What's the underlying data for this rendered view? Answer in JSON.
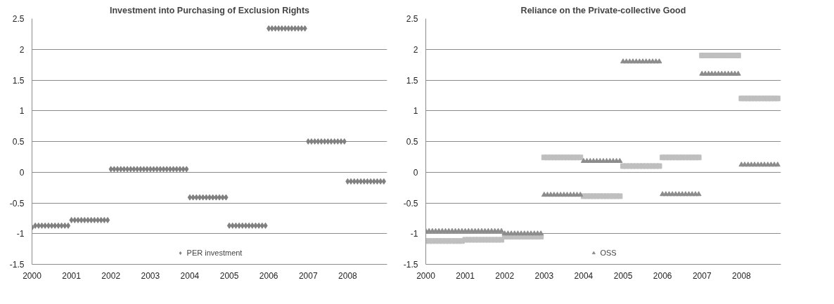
{
  "chart_data": [
    {
      "type": "scatter",
      "title": "Investment into Purchasing of Exclusion Rights",
      "x": [
        2000,
        2000.083,
        2000.167,
        2000.25,
        2000.333,
        2000.417,
        2000.5,
        2000.583,
        2000.667,
        2000.75,
        2000.833,
        2000.917,
        2001,
        2001.083,
        2001.167,
        2001.25,
        2001.333,
        2001.417,
        2001.5,
        2001.583,
        2001.667,
        2001.75,
        2001.833,
        2001.917,
        2002,
        2002.083,
        2002.167,
        2002.25,
        2002.333,
        2002.417,
        2002.5,
        2002.583,
        2002.667,
        2002.75,
        2002.833,
        2002.917,
        2003,
        2003.083,
        2003.167,
        2003.25,
        2003.333,
        2003.417,
        2003.5,
        2003.583,
        2003.667,
        2003.75,
        2003.833,
        2003.917,
        2004,
        2004.083,
        2004.167,
        2004.25,
        2004.333,
        2004.417,
        2004.5,
        2004.583,
        2004.667,
        2004.75,
        2004.833,
        2004.917,
        2005,
        2005.083,
        2005.167,
        2005.25,
        2005.333,
        2005.417,
        2005.5,
        2005.583,
        2005.667,
        2005.75,
        2005.833,
        2005.917,
        2006,
        2006.083,
        2006.167,
        2006.25,
        2006.333,
        2006.417,
        2006.5,
        2006.583,
        2006.667,
        2006.75,
        2006.833,
        2006.917,
        2007,
        2007.083,
        2007.167,
        2007.25,
        2007.333,
        2007.417,
        2007.5,
        2007.583,
        2007.667,
        2007.75,
        2007.833,
        2007.917,
        2008,
        2008.083,
        2008.167,
        2008.25,
        2008.333,
        2008.417,
        2008.5,
        2008.583,
        2008.667,
        2008.75,
        2008.833,
        2008.917
      ],
      "series": [
        {
          "name": "PER investment",
          "color": "#808080",
          "marker": "diamond",
          "values": [
            -0.9,
            -0.87,
            -0.87,
            -0.87,
            -0.87,
            -0.87,
            -0.87,
            -0.87,
            -0.87,
            -0.87,
            -0.87,
            -0.87,
            -0.78,
            -0.78,
            -0.78,
            -0.78,
            -0.78,
            -0.78,
            -0.78,
            -0.78,
            -0.78,
            -0.78,
            -0.78,
            -0.78,
            0.05,
            0.05,
            0.05,
            0.05,
            0.05,
            0.05,
            0.05,
            0.05,
            0.05,
            0.05,
            0.05,
            0.05,
            0.05,
            0.05,
            0.05,
            0.05,
            0.05,
            0.05,
            0.05,
            0.05,
            0.05,
            0.05,
            0.05,
            0.05,
            -0.41,
            -0.41,
            -0.41,
            -0.41,
            -0.41,
            -0.41,
            -0.41,
            -0.41,
            -0.41,
            -0.41,
            -0.41,
            -0.41,
            -0.87,
            -0.87,
            -0.87,
            -0.87,
            -0.87,
            -0.87,
            -0.87,
            -0.87,
            -0.87,
            -0.87,
            -0.87,
            -0.87,
            2.34,
            2.34,
            2.34,
            2.34,
            2.34,
            2.34,
            2.34,
            2.34,
            2.34,
            2.34,
            2.34,
            2.34,
            0.5,
            0.5,
            0.5,
            0.5,
            0.5,
            0.5,
            0.5,
            0.5,
            0.5,
            0.5,
            0.5,
            0.5,
            -0.15,
            -0.15,
            -0.15,
            -0.15,
            -0.15,
            -0.15,
            -0.15,
            -0.15,
            -0.15,
            -0.15,
            -0.15,
            -0.15
          ]
        }
      ],
      "xlim": [
        2000,
        2009
      ],
      "xticks": [
        2000,
        2001,
        2002,
        2003,
        2004,
        2005,
        2006,
        2007,
        2008
      ],
      "ylim": [
        -1.5,
        2.5
      ],
      "yticks": [
        -1.5,
        -1,
        -0.5,
        0,
        0.5,
        1,
        1.5,
        2,
        2.5
      ],
      "grid": "y",
      "legend": "bottom"
    },
    {
      "type": "scatter",
      "title": "Reliance on the Private-collective Good",
      "x": [
        2000,
        2000.083,
        2000.167,
        2000.25,
        2000.333,
        2000.417,
        2000.5,
        2000.583,
        2000.667,
        2000.75,
        2000.833,
        2000.917,
        2001,
        2001.083,
        2001.167,
        2001.25,
        2001.333,
        2001.417,
        2001.5,
        2001.583,
        2001.667,
        2001.75,
        2001.833,
        2001.917,
        2002,
        2002.083,
        2002.167,
        2002.25,
        2002.333,
        2002.417,
        2002.5,
        2002.583,
        2002.667,
        2002.75,
        2002.833,
        2002.917,
        2003,
        2003.083,
        2003.167,
        2003.25,
        2003.333,
        2003.417,
        2003.5,
        2003.583,
        2003.667,
        2003.75,
        2003.833,
        2003.917,
        2004,
        2004.083,
        2004.167,
        2004.25,
        2004.333,
        2004.417,
        2004.5,
        2004.583,
        2004.667,
        2004.75,
        2004.833,
        2004.917,
        2005,
        2005.083,
        2005.167,
        2005.25,
        2005.333,
        2005.417,
        2005.5,
        2005.583,
        2005.667,
        2005.75,
        2005.833,
        2005.917,
        2006,
        2006.083,
        2006.167,
        2006.25,
        2006.333,
        2006.417,
        2006.5,
        2006.583,
        2006.667,
        2006.75,
        2006.833,
        2006.917,
        2007,
        2007.083,
        2007.167,
        2007.25,
        2007.333,
        2007.417,
        2007.5,
        2007.583,
        2007.667,
        2007.75,
        2007.833,
        2007.917,
        2008,
        2008.083,
        2008.167,
        2008.25,
        2008.333,
        2008.417,
        2008.5,
        2008.583,
        2008.667,
        2008.75,
        2008.833,
        2008.917
      ],
      "series": [
        {
          "color": "#bfbfbf",
          "marker": "square",
          "values": [
            -1.12,
            -1.12,
            -1.12,
            -1.12,
            -1.12,
            -1.12,
            -1.12,
            -1.12,
            -1.12,
            -1.12,
            -1.12,
            -1.12,
            -1.1,
            -1.1,
            -1.1,
            -1.1,
            -1.1,
            -1.1,
            -1.1,
            -1.1,
            -1.1,
            -1.1,
            -1.1,
            -1.1,
            -1.05,
            -1.05,
            -1.05,
            -1.05,
            -1.05,
            -1.05,
            -1.05,
            -1.05,
            -1.05,
            -1.05,
            -1.05,
            -1.05,
            0.24,
            0.24,
            0.24,
            0.24,
            0.24,
            0.24,
            0.24,
            0.24,
            0.24,
            0.24,
            0.24,
            0.24,
            -0.39,
            -0.39,
            -0.39,
            -0.39,
            -0.39,
            -0.39,
            -0.39,
            -0.39,
            -0.39,
            -0.39,
            -0.39,
            -0.39,
            0.1,
            0.1,
            0.1,
            0.1,
            0.1,
            0.1,
            0.1,
            0.1,
            0.1,
            0.1,
            0.1,
            0.1,
            0.24,
            0.24,
            0.24,
            0.24,
            0.24,
            0.24,
            0.24,
            0.24,
            0.24,
            0.24,
            0.24,
            0.24,
            1.9,
            1.9,
            1.9,
            1.9,
            1.9,
            1.9,
            1.9,
            1.9,
            1.9,
            1.9,
            1.9,
            1.9,
            1.2,
            1.2,
            1.2,
            1.2,
            1.2,
            1.2,
            1.2,
            1.2,
            1.2,
            1.2,
            1.2,
            1.2
          ]
        },
        {
          "name": "OSS",
          "color": "#8c8c8c",
          "marker": "triangle",
          "values": [
            -0.96,
            -0.96,
            -0.96,
            -0.96,
            -0.96,
            -0.96,
            -0.96,
            -0.96,
            -0.96,
            -0.96,
            -0.96,
            -0.96,
            -0.96,
            -0.96,
            -0.96,
            -0.96,
            -0.96,
            -0.96,
            -0.96,
            -0.96,
            -0.96,
            -0.96,
            -0.96,
            -0.96,
            -1.0,
            -1.0,
            -1.0,
            -1.0,
            -1.0,
            -1.0,
            -1.0,
            -1.0,
            -1.0,
            -1.0,
            -1.0,
            -1.0,
            -0.37,
            -0.37,
            -0.37,
            -0.37,
            -0.37,
            -0.37,
            -0.37,
            -0.37,
            -0.37,
            -0.37,
            -0.37,
            -0.37,
            0.18,
            0.18,
            0.18,
            0.18,
            0.18,
            0.18,
            0.18,
            0.18,
            0.18,
            0.18,
            0.18,
            0.18,
            1.8,
            1.8,
            1.8,
            1.8,
            1.8,
            1.8,
            1.8,
            1.8,
            1.8,
            1.8,
            1.8,
            1.8,
            -0.36,
            -0.36,
            -0.36,
            -0.36,
            -0.36,
            -0.36,
            -0.36,
            -0.36,
            -0.36,
            -0.36,
            -0.36,
            -0.36,
            1.6,
            1.6,
            1.6,
            1.6,
            1.6,
            1.6,
            1.6,
            1.6,
            1.6,
            1.6,
            1.6,
            1.6,
            0.12,
            0.12,
            0.12,
            0.12,
            0.12,
            0.12,
            0.12,
            0.12,
            0.12,
            0.12,
            0.12,
            0.12
          ]
        }
      ],
      "xlim": [
        2000,
        2009
      ],
      "xticks": [
        2000,
        2001,
        2002,
        2003,
        2004,
        2005,
        2006,
        2007,
        2008
      ],
      "ylim": [
        -1.5,
        2.5
      ],
      "yticks": [
        -1.5,
        -1,
        -0.5,
        0,
        0.5,
        1,
        1.5,
        2,
        2.5
      ],
      "grid": "y",
      "legend": "bottom"
    }
  ]
}
